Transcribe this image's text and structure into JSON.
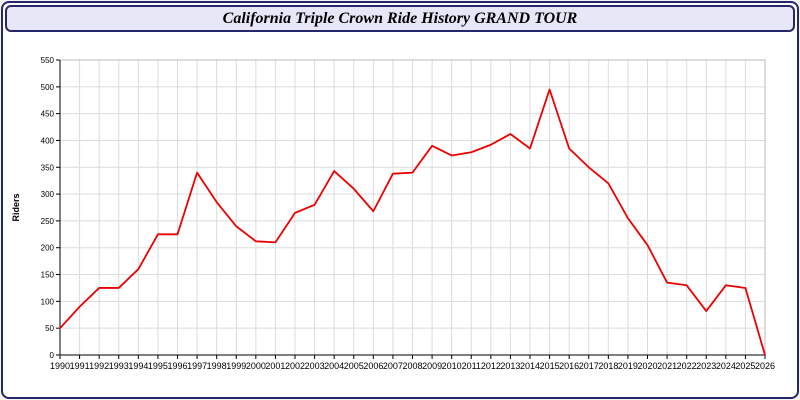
{
  "title_bar": {
    "text": "California Triple Crown Ride History GRAND TOUR"
  },
  "chart_data": {
    "type": "line",
    "title": "California Triple Crown Ride History GRAND TOUR",
    "xlabel": "",
    "ylabel": "Riders",
    "x": [
      1990,
      1991,
      1992,
      1993,
      1994,
      1995,
      1996,
      1997,
      1998,
      1999,
      2000,
      2001,
      2002,
      2003,
      2004,
      2005,
      2006,
      2007,
      2008,
      2009,
      2010,
      2011,
      2012,
      2013,
      2014,
      2015,
      2016,
      2017,
      2018,
      2019,
      2020,
      2021,
      2022,
      2023,
      2024,
      2025,
      2026
    ],
    "series": [
      {
        "name": "Riders",
        "color": "#ee0000",
        "values": [
          50,
          90,
          125,
          125,
          160,
          225,
          225,
          340,
          285,
          240,
          212,
          210,
          265,
          280,
          343,
          310,
          268,
          338,
          340,
          390,
          372,
          378,
          392,
          412,
          385,
          495,
          385,
          350,
          320,
          255,
          205,
          135,
          130,
          82,
          130,
          125,
          0
        ]
      }
    ],
    "ylim": [
      0,
      550
    ],
    "ytick_step": 50,
    "grid": true,
    "legend": "none",
    "colors": {
      "line": "#ee0000",
      "grid": "#dcdcdc",
      "axis": "#000000",
      "plot_border": "#bbbbbb",
      "title_bar_bg": "#e7e7f8",
      "frame_border": "#26266b"
    }
  }
}
